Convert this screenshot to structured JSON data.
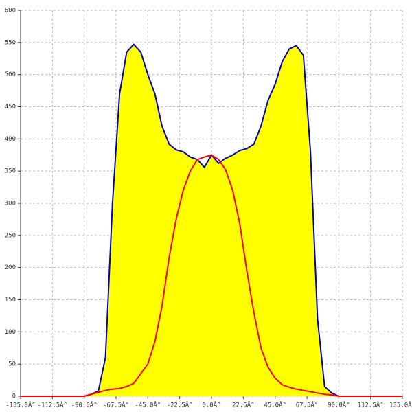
{
  "chart_data": {
    "type": "line",
    "x": [
      -135,
      -90,
      -85,
      -80,
      -75,
      -70,
      -65,
      -60,
      -55,
      -50,
      -45,
      -40,
      -35,
      -30,
      -25,
      -20,
      -15,
      -10,
      -5,
      0,
      5,
      10,
      15,
      20,
      25,
      30,
      35,
      40,
      45,
      50,
      55,
      60,
      65,
      70,
      75,
      80,
      85,
      90,
      135
    ],
    "series": [
      {
        "color": "#0000cc",
        "fill": "#ffff00",
        "values": [
          0,
          0,
          3,
          8,
          60,
          300,
          470,
          535,
          547,
          535,
          500,
          470,
          420,
          392,
          383,
          380,
          372,
          368,
          356,
          375,
          362,
          370,
          375,
          382,
          385,
          392,
          420,
          460,
          485,
          520,
          540,
          545,
          530,
          380,
          120,
          15,
          5,
          0,
          0
        ]
      },
      {
        "color": "#ff0000",
        "values": [
          0,
          0,
          3,
          6,
          9,
          11,
          12,
          15,
          20,
          35,
          50,
          85,
          140,
          215,
          275,
          320,
          350,
          368,
          372,
          375,
          368,
          352,
          320,
          268,
          195,
          130,
          75,
          45,
          28,
          18,
          14,
          11,
          9,
          7,
          5,
          3,
          2,
          0,
          0
        ]
      }
    ],
    "xlim": [
      -135,
      135
    ],
    "ylim": [
      0,
      600
    ],
    "xticks": [
      {
        "value": -135,
        "label": "-135.0Â°"
      },
      {
        "value": -112.5,
        "label": "-112.5Â°"
      },
      {
        "value": -90,
        "label": "-90.0Â°"
      },
      {
        "value": -67.5,
        "label": "-67.5Â°"
      },
      {
        "value": -45,
        "label": "-45.0Â°"
      },
      {
        "value": -22.5,
        "label": "-22.5Â°"
      },
      {
        "value": 0,
        "label": "0.0Â°"
      },
      {
        "value": 22.5,
        "label": "22.5Â°"
      },
      {
        "value": 45,
        "label": "45.0Â°"
      },
      {
        "value": 67.5,
        "label": "67.5Â°"
      },
      {
        "value": 90,
        "label": "90.0Â°"
      },
      {
        "value": 112.5,
        "label": "112.5Â°"
      },
      {
        "value": 135,
        "label": "135.0Â°"
      }
    ],
    "yticks": [
      0,
      50,
      100,
      150,
      200,
      250,
      300,
      350,
      400,
      450,
      500,
      550,
      600
    ],
    "grid": true
  }
}
